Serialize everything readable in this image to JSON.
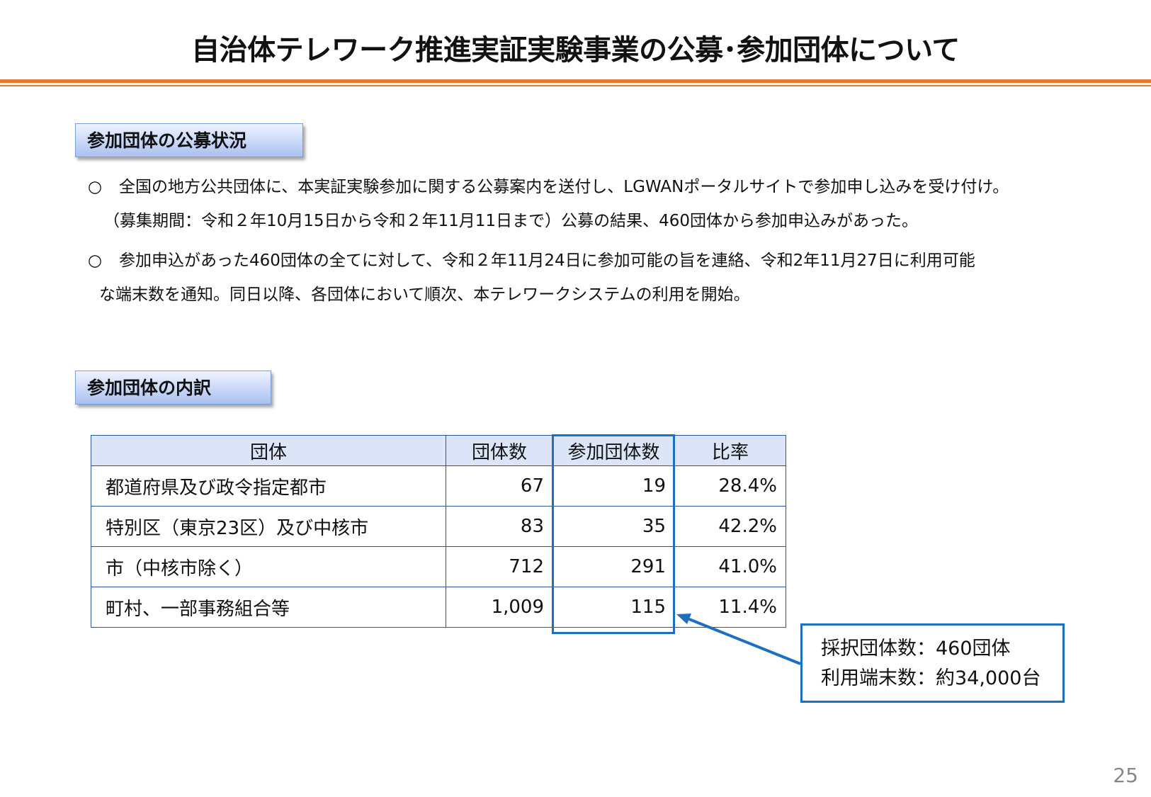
{
  "title": "自治体テレワーク推進実証実験事業の公募･参加団体について",
  "section1": {
    "label": "参加団体の公募状況",
    "paragraphs": [
      {
        "bullet": "○",
        "line1": "全国の地方公共団体に、本実証実験参加に関する公募案内を送付し、LGWANポータルサイトで参加申し込みを受け付け。",
        "line2": "（募集期間：令和２年10月15日から令和２年11月11日まで）公募の結果、460団体から参加申込みがあった。"
      },
      {
        "bullet": "○",
        "line1": "参加申込があった460団体の全てに対して、令和２年11月24日に参加可能の旨を連絡、令和2年11月27日に利用可能",
        "line2": "な端末数を通知。同日以降、各団体において順次、本テレワークシステムの利用を開始。"
      }
    ]
  },
  "section2": {
    "label": "参加団体の内訳"
  },
  "table": {
    "headers": [
      "団体",
      "団体数",
      "参加団体数",
      "比率"
    ],
    "rows": [
      [
        "都道府県及び政令指定都市",
        "67",
        "19",
        "28.4%"
      ],
      [
        "特別区（東京23区）及び中核市",
        "83",
        "35",
        "42.2%"
      ],
      [
        "市（中核市除く）",
        "712",
        "291",
        "41.0%"
      ],
      [
        "町村、一部事務組合等",
        "1,009",
        "115",
        "11.4%"
      ]
    ]
  },
  "callout": {
    "line1": "採択団体数：460団体",
    "line2": "利用端末数：約34,000台"
  },
  "page_number": "25",
  "colors": {
    "accent_orange": "#e9772c",
    "table_border": "#2f5597",
    "header_fill": "#dbe5f7",
    "highlight_blue": "#1f6fbf"
  }
}
